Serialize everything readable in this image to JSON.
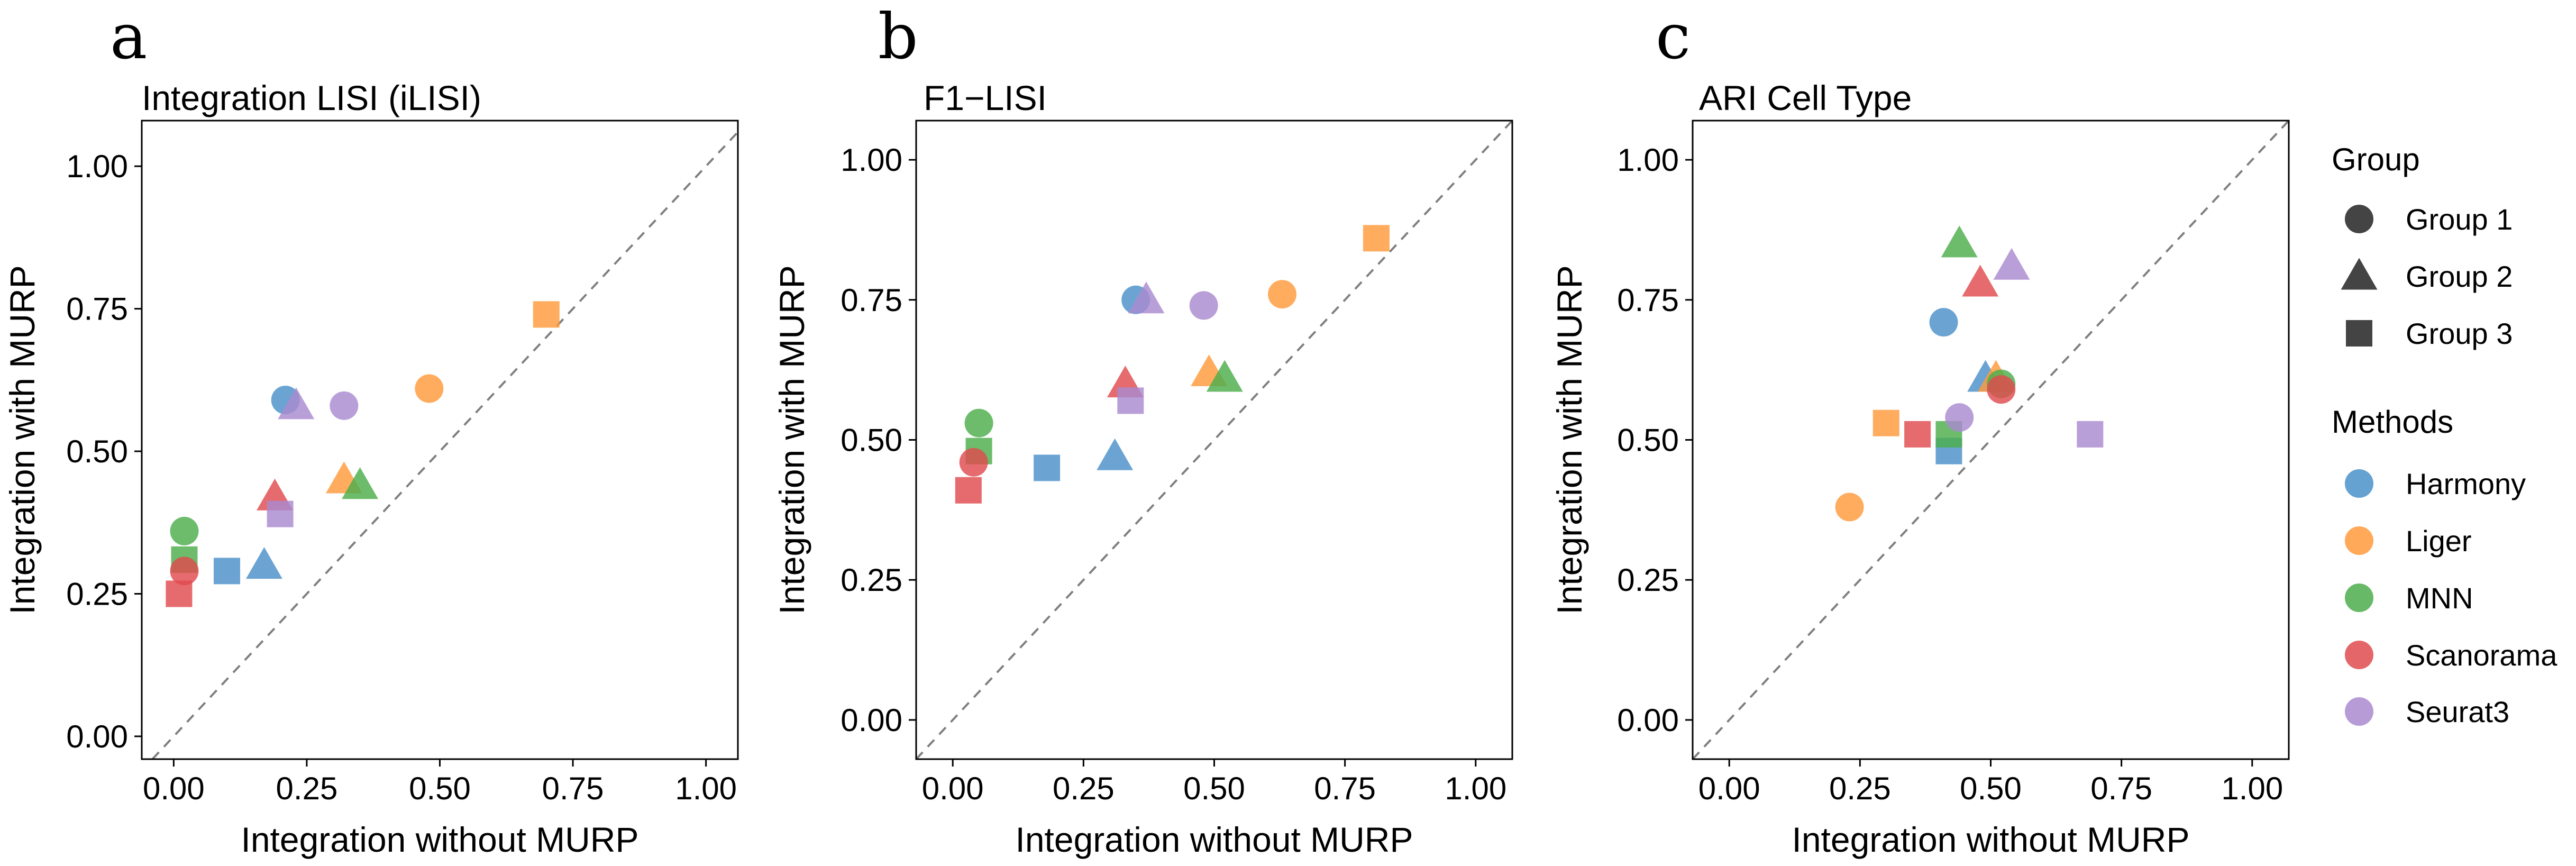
{
  "chart_data": [
    {
      "type": "scatter",
      "panel_letter": "a",
      "title": "Integration LISI (iLISI)",
      "xlabel": "Integration without MURP",
      "ylabel": "Integration with MURP",
      "xlim": [
        -0.06,
        1.06
      ],
      "ylim": [
        -0.04,
        1.08
      ],
      "xticks": [
        "0.00",
        "0.25",
        "0.50",
        "0.75",
        "1.00"
      ],
      "yticks": [
        "0.00",
        "0.25",
        "0.50",
        "0.75",
        "1.00"
      ],
      "reference_line": "y = x (dashed)",
      "grid": false,
      "points": [
        {
          "method": "Harmony",
          "group": "Group 1",
          "x": 0.21,
          "y": 0.59
        },
        {
          "method": "Harmony",
          "group": "Group 2",
          "x": 0.17,
          "y": 0.3
        },
        {
          "method": "Harmony",
          "group": "Group 3",
          "x": 0.1,
          "y": 0.29
        },
        {
          "method": "Liger",
          "group": "Group 1",
          "x": 0.48,
          "y": 0.61
        },
        {
          "method": "Liger",
          "group": "Group 2",
          "x": 0.32,
          "y": 0.45
        },
        {
          "method": "Liger",
          "group": "Group 3",
          "x": 0.7,
          "y": 0.74
        },
        {
          "method": "MNN",
          "group": "Group 1",
          "x": 0.02,
          "y": 0.36
        },
        {
          "method": "MNN",
          "group": "Group 2",
          "x": 0.35,
          "y": 0.44
        },
        {
          "method": "MNN",
          "group": "Group 3",
          "x": 0.02,
          "y": 0.31
        },
        {
          "method": "Scanorama",
          "group": "Group 1",
          "x": 0.02,
          "y": 0.29
        },
        {
          "method": "Scanorama",
          "group": "Group 2",
          "x": 0.19,
          "y": 0.42
        },
        {
          "method": "Scanorama",
          "group": "Group 3",
          "x": 0.01,
          "y": 0.25
        },
        {
          "method": "Seurat3",
          "group": "Group 1",
          "x": 0.32,
          "y": 0.58
        },
        {
          "method": "Seurat3",
          "group": "Group 2",
          "x": 0.23,
          "y": 0.58
        },
        {
          "method": "Seurat3",
          "group": "Group 3",
          "x": 0.2,
          "y": 0.39
        }
      ]
    },
    {
      "type": "scatter",
      "panel_letter": "b",
      "title": "F1−LISI",
      "xlabel": "Integration without MURP",
      "ylabel": "Integration with MURP",
      "xlim": [
        -0.07,
        1.07
      ],
      "ylim": [
        -0.07,
        1.07
      ],
      "xticks": [
        "0.00",
        "0.25",
        "0.50",
        "0.75",
        "1.00"
      ],
      "yticks": [
        "0.00",
        "0.25",
        "0.50",
        "0.75",
        "1.00"
      ],
      "reference_line": "y = x (dashed)",
      "grid": false,
      "points": [
        {
          "method": "Harmony",
          "group": "Group 1",
          "x": 0.35,
          "y": 0.75
        },
        {
          "method": "Harmony",
          "group": "Group 2",
          "x": 0.31,
          "y": 0.47
        },
        {
          "method": "Harmony",
          "group": "Group 3",
          "x": 0.18,
          "y": 0.45
        },
        {
          "method": "Liger",
          "group": "Group 1",
          "x": 0.63,
          "y": 0.76
        },
        {
          "method": "Liger",
          "group": "Group 2",
          "x": 0.49,
          "y": 0.62
        },
        {
          "method": "Liger",
          "group": "Group 3",
          "x": 0.81,
          "y": 0.86
        },
        {
          "method": "MNN",
          "group": "Group 1",
          "x": 0.05,
          "y": 0.53
        },
        {
          "method": "MNN",
          "group": "Group 2",
          "x": 0.52,
          "y": 0.61
        },
        {
          "method": "MNN",
          "group": "Group 3",
          "x": 0.05,
          "y": 0.48
        },
        {
          "method": "Scanorama",
          "group": "Group 1",
          "x": 0.04,
          "y": 0.46
        },
        {
          "method": "Scanorama",
          "group": "Group 2",
          "x": 0.33,
          "y": 0.6
        },
        {
          "method": "Scanorama",
          "group": "Group 3",
          "x": 0.03,
          "y": 0.41
        },
        {
          "method": "Seurat3",
          "group": "Group 1",
          "x": 0.48,
          "y": 0.74
        },
        {
          "method": "Seurat3",
          "group": "Group 2",
          "x": 0.37,
          "y": 0.75
        },
        {
          "method": "Seurat3",
          "group": "Group 3",
          "x": 0.34,
          "y": 0.57
        }
      ]
    },
    {
      "type": "scatter",
      "panel_letter": "c",
      "title": "ARI Cell Type",
      "xlabel": "Integration without MURP",
      "ylabel": "Integration with MURP",
      "xlim": [
        -0.07,
        1.07
      ],
      "ylim": [
        -0.07,
        1.07
      ],
      "xticks": [
        "0.00",
        "0.25",
        "0.50",
        "0.75",
        "1.00"
      ],
      "yticks": [
        "0.00",
        "0.25",
        "0.50",
        "0.75",
        "1.00"
      ],
      "reference_line": "y = x (dashed)",
      "grid": false,
      "points": [
        {
          "method": "Harmony",
          "group": "Group 1",
          "x": 0.41,
          "y": 0.71
        },
        {
          "method": "Harmony",
          "group": "Group 2",
          "x": 0.49,
          "y": 0.61
        },
        {
          "method": "Harmony",
          "group": "Group 3",
          "x": 0.42,
          "y": 0.48
        },
        {
          "method": "Liger",
          "group": "Group 1",
          "x": 0.23,
          "y": 0.38
        },
        {
          "method": "Liger",
          "group": "Group 2",
          "x": 0.51,
          "y": 0.61
        },
        {
          "method": "Liger",
          "group": "Group 3",
          "x": 0.3,
          "y": 0.53
        },
        {
          "method": "MNN",
          "group": "Group 1",
          "x": 0.52,
          "y": 0.6
        },
        {
          "method": "MNN",
          "group": "Group 2",
          "x": 0.44,
          "y": 0.85
        },
        {
          "method": "MNN",
          "group": "Group 3",
          "x": 0.42,
          "y": 0.51
        },
        {
          "method": "Scanorama",
          "group": "Group 1",
          "x": 0.52,
          "y": 0.59
        },
        {
          "method": "Scanorama",
          "group": "Group 2",
          "x": 0.48,
          "y": 0.78
        },
        {
          "method": "Scanorama",
          "group": "Group 3",
          "x": 0.36,
          "y": 0.51
        },
        {
          "method": "Seurat3",
          "group": "Group 1",
          "x": 0.44,
          "y": 0.54
        },
        {
          "method": "Seurat3",
          "group": "Group 2",
          "x": 0.54,
          "y": 0.81
        },
        {
          "method": "Seurat3",
          "group": "Group 3",
          "x": 0.69,
          "y": 0.51
        }
      ]
    }
  ],
  "legend": {
    "group_title": "Group",
    "groups": [
      {
        "label": "Group 1",
        "shape": "circle"
      },
      {
        "label": "Group 2",
        "shape": "triangle"
      },
      {
        "label": "Group 3",
        "shape": "square"
      }
    ],
    "methods_title": "Methods",
    "methods": [
      {
        "label": "Harmony",
        "color": "#4a90c9"
      },
      {
        "label": "Liger",
        "color": "#ff9a3c"
      },
      {
        "label": "MNN",
        "color": "#4cad4c"
      },
      {
        "label": "Scanorama",
        "color": "#e04b4e"
      },
      {
        "label": "Seurat3",
        "color": "#a98ad0"
      }
    ]
  }
}
